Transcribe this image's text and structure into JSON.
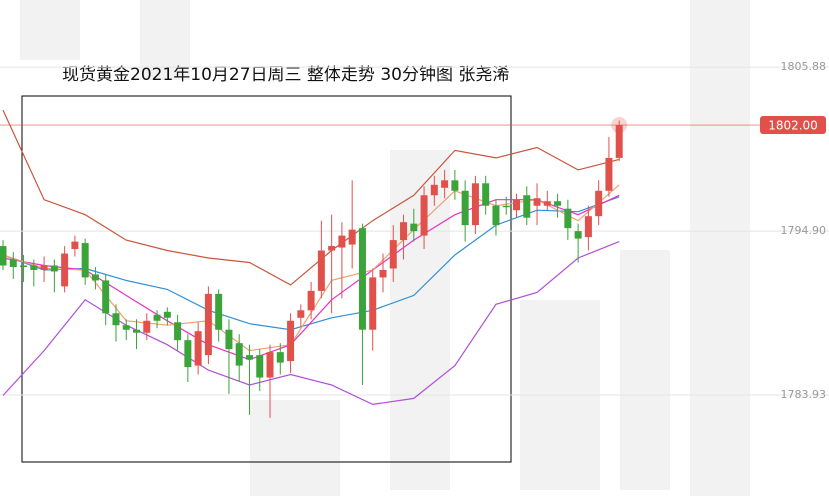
{
  "chart_data": {
    "type": "candlestick",
    "title": "现货黄金2021年10月27日周三   整体走势 30分钟图 张尧浠",
    "ylim": [
      1777.17,
      1810.37
    ],
    "yticks": [
      1805.88,
      {
        "value": 1794.9,
        "label": "1794.90"
      },
      1783.93
    ],
    "grid": true,
    "up_color": "#e0514c",
    "down_color": "#3aa33a",
    "current_price": {
      "value": 1802.0,
      "label": "1802.00",
      "color": "#e0514c"
    },
    "open": [
      1793.9,
      1793.0,
      1792.6,
      1792.6,
      1792.3,
      1792.6,
      1791.2,
      1793.7,
      1794.1,
      1792.0,
      1791.6,
      1789.4,
      1788.6,
      1788.3,
      1788.1,
      1789.3,
      1789.5,
      1788.8,
      1787.6,
      1785.9,
      1786.6,
      1790.7,
      1788.3,
      1787.4,
      1786.6,
      1786.6,
      1785.1,
      1786.8,
      1786.2,
      1789.1,
      1789.6,
      1790.9,
      1793.6,
      1793.8,
      1794.0,
      1795.1,
      1788.3,
      1791.8,
      1792.4,
      1794.3,
      1795.4,
      1794.6,
      1797.3,
      1797.8,
      1798.3,
      1797.6,
      1795.3,
      1798.1,
      1796.6,
      1796.6,
      1796.3,
      1797.3,
      1796.6,
      1796.6,
      1796.9,
      1796.4,
      1794.9,
      1794.5,
      1795.9,
      1797.6,
      1799.8
    ],
    "high": [
      1794.3,
      1793.5,
      1793.3,
      1793.0,
      1793.2,
      1793.0,
      1793.9,
      1794.6,
      1794.4,
      1792.5,
      1792.0,
      1790.0,
      1789.0,
      1789.0,
      1789.4,
      1789.6,
      1789.8,
      1789.3,
      1788.0,
      1788.8,
      1791.2,
      1791.0,
      1789.0,
      1788.0,
      1787.3,
      1787.0,
      1787.3,
      1787.4,
      1789.4,
      1790.0,
      1791.5,
      1795.6,
      1796.0,
      1795.5,
      1798.3,
      1795.4,
      1792.4,
      1793.4,
      1795.3,
      1796.0,
      1796.4,
      1797.9,
      1798.6,
      1799.0,
      1799.0,
      1798.3,
      1798.6,
      1798.6,
      1797.0,
      1797.2,
      1797.4,
      1797.9,
      1798.1,
      1797.6,
      1797.4,
      1797.0,
      1795.4,
      1796.6,
      1798.3,
      1801.2,
      1802.3
    ],
    "low": [
      1792.3,
      1791.7,
      1791.5,
      1791.2,
      1791.5,
      1790.8,
      1790.8,
      1793.2,
      1791.3,
      1791.0,
      1788.6,
      1787.5,
      1787.6,
      1787.0,
      1787.6,
      1788.4,
      1788.6,
      1786.9,
      1784.8,
      1785.3,
      1786.0,
      1787.5,
      1784.0,
      1784.8,
      1782.6,
      1784.2,
      1782.4,
      1785.3,
      1785.4,
      1788.5,
      1789.0,
      1790.4,
      1789.4,
      1790.4,
      1792.4,
      1784.6,
      1786.9,
      1790.8,
      1791.5,
      1793.0,
      1794.2,
      1793.7,
      1796.6,
      1797.1,
      1797.0,
      1794.2,
      1794.7,
      1796.0,
      1794.6,
      1796.0,
      1795.8,
      1795.3,
      1795.3,
      1796.3,
      1795.8,
      1794.3,
      1792.8,
      1793.6,
      1795.3,
      1797.2,
      1799.6
    ],
    "close": [
      1792.6,
      1792.5,
      1792.5,
      1792.3,
      1792.6,
      1792.2,
      1793.4,
      1794.2,
      1791.8,
      1791.6,
      1789.4,
      1788.6,
      1788.3,
      1788.1,
      1788.9,
      1788.9,
      1789.1,
      1787.6,
      1785.8,
      1788.2,
      1790.7,
      1788.3,
      1787.0,
      1785.9,
      1786.3,
      1785.1,
      1786.8,
      1786.1,
      1788.9,
      1789.6,
      1790.9,
      1793.6,
      1793.9,
      1794.6,
      1795.0,
      1788.3,
      1791.8,
      1792.3,
      1794.3,
      1795.5,
      1794.9,
      1797.3,
      1798.0,
      1798.3,
      1797.6,
      1795.3,
      1798.1,
      1796.6,
      1795.3,
      1796.5,
      1797.0,
      1795.8,
      1797.1,
      1796.9,
      1796.6,
      1795.1,
      1794.4,
      1795.9,
      1797.6,
      1799.8,
      1802.0
    ],
    "lines": [
      {
        "color": "#c8553d",
        "x": [
          0,
          4,
          8,
          12,
          16,
          20,
          24,
          28,
          32,
          36,
          40,
          44,
          48,
          52,
          56,
          60
        ],
        "values": [
          1803.0,
          1797.0,
          1796.0,
          1794.3,
          1793.6,
          1793.1,
          1792.8,
          1791.3,
          1793.6,
          1795.6,
          1797.3,
          1800.3,
          1799.8,
          1800.5,
          1799.0,
          1799.7
        ]
      },
      {
        "color": "#b04fd8",
        "x": [
          0,
          4,
          8,
          12,
          16,
          20,
          24,
          28,
          32,
          36,
          40,
          44,
          48,
          52,
          56,
          60
        ],
        "values": [
          1783.9,
          1786.9,
          1790.3,
          1788.6,
          1787.3,
          1785.6,
          1784.6,
          1785.3,
          1784.6,
          1783.3,
          1783.7,
          1785.9,
          1790.0,
          1790.8,
          1793.1,
          1794.2
        ]
      },
      {
        "color": "#2f8fd6",
        "x": [
          0,
          4,
          8,
          12,
          16,
          20,
          24,
          28,
          32,
          36,
          40,
          44,
          48,
          52,
          56,
          60
        ],
        "values": [
          1793.3,
          1792.3,
          1792.4,
          1791.6,
          1791.0,
          1789.6,
          1788.7,
          1788.3,
          1789.1,
          1789.6,
          1790.6,
          1793.3,
          1795.3,
          1796.3,
          1796.2,
          1797.2
        ]
      },
      {
        "color": "#e832c8",
        "x": [
          0,
          4,
          8,
          12,
          16,
          20,
          24,
          28,
          32,
          36,
          40,
          44,
          48,
          52,
          56,
          60
        ],
        "values": [
          1793.1,
          1792.6,
          1792.3,
          1790.6,
          1788.9,
          1787.3,
          1786.3,
          1787.3,
          1790.3,
          1792.3,
          1794.3,
          1796.0,
          1797.0,
          1797.0,
          1796.0,
          1797.3
        ]
      },
      {
        "color": "#f0a070",
        "x": [
          0,
          4,
          8,
          12,
          16,
          20,
          24,
          28,
          32,
          36,
          40,
          44,
          48,
          52,
          56,
          60
        ],
        "values": [
          1793.3,
          1792.4,
          1792.3,
          1788.9,
          1788.6,
          1788.9,
          1786.9,
          1787.3,
          1791.6,
          1792.3,
          1795.0,
          1797.6,
          1796.6,
          1797.0,
          1795.6,
          1798.0
        ]
      }
    ]
  }
}
